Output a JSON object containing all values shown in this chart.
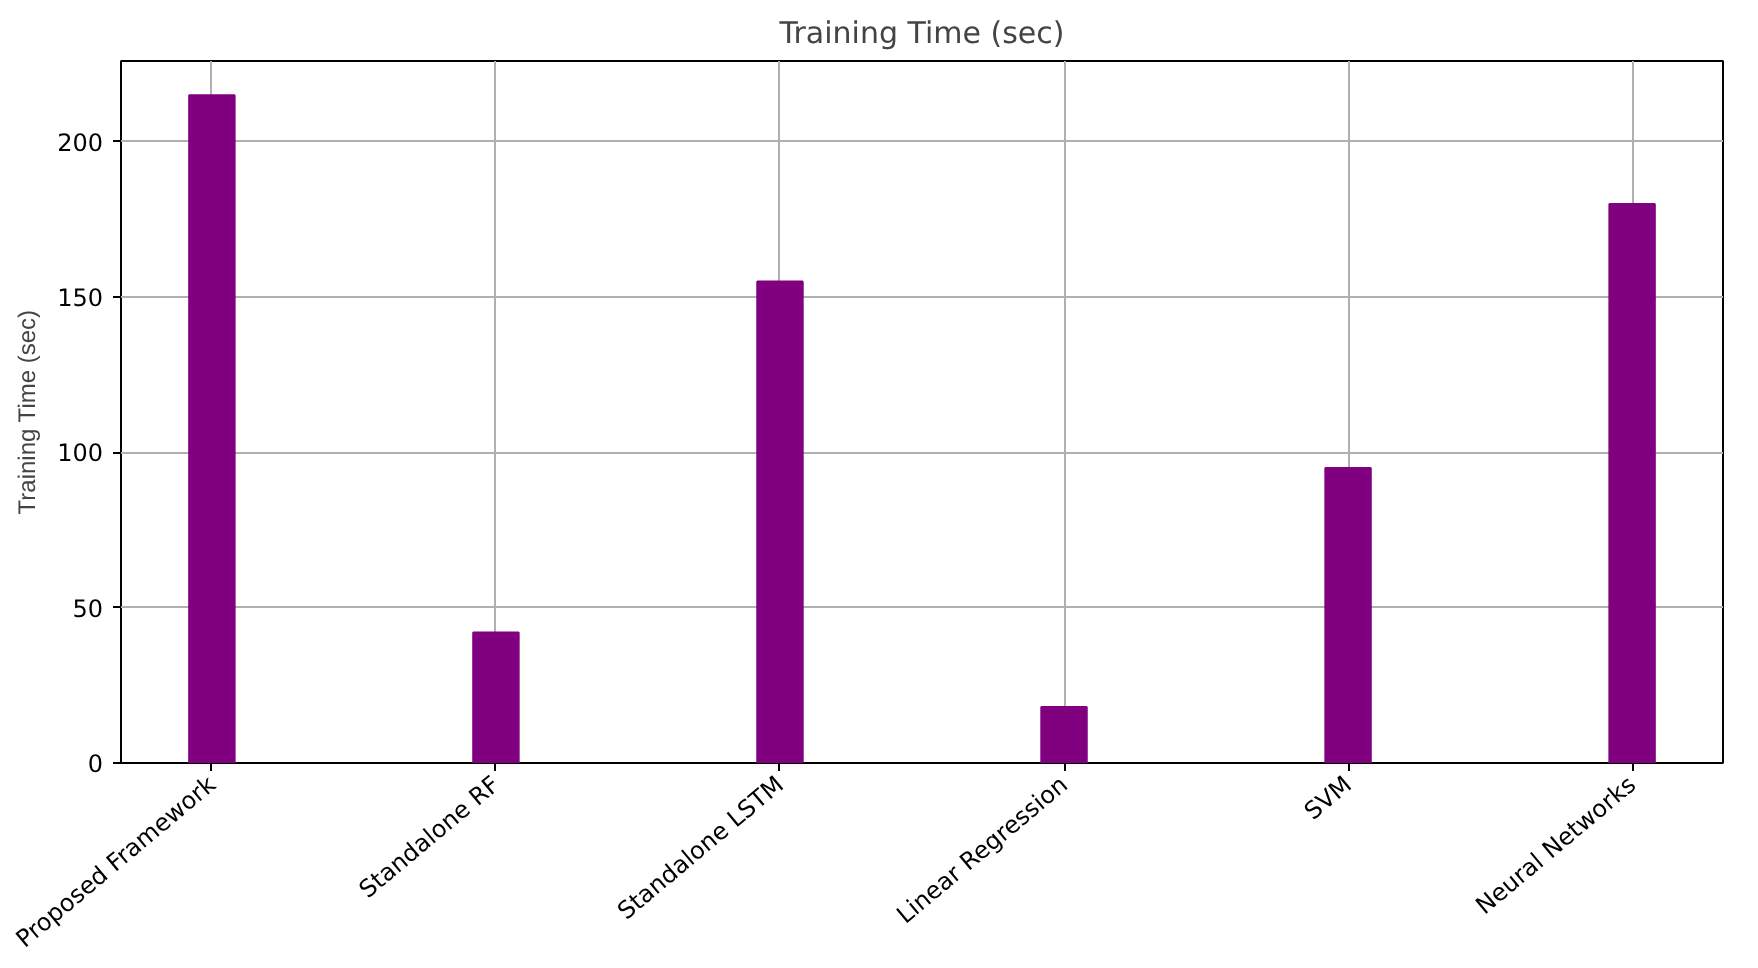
{
  "chart_data": {
    "type": "bar",
    "title": "Training Time (sec)",
    "ylabel": "Training Time (sec)",
    "categories": [
      "Proposed Framework",
      "Standalone RF",
      "Standalone LSTM",
      "Linear Regression",
      "SVM",
      "Neural Networks"
    ],
    "values": [
      215,
      42,
      155,
      18,
      95,
      180
    ],
    "color": "#800080",
    "ylim": [
      0,
      226
    ],
    "yticks": [
      0,
      50,
      100,
      150,
      200
    ],
    "grid": true
  }
}
